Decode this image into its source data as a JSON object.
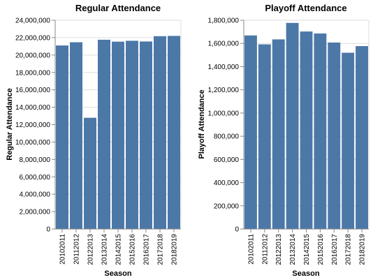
{
  "colors": {
    "bar": "#4c78a8"
  },
  "chart_data": [
    {
      "type": "bar",
      "title": "Regular Attendance",
      "xlabel": "Season",
      "ylabel": "Regular Attendance",
      "categories": [
        "20102011",
        "20112012",
        "20122013",
        "20132014",
        "20142015",
        "20152016",
        "20162017",
        "20172018",
        "20182019"
      ],
      "values": [
        21100000,
        21470000,
        12790000,
        21760000,
        21540000,
        21640000,
        21560000,
        22170000,
        22200000
      ],
      "ylim": [
        0,
        24000000
      ],
      "yticks": [
        0,
        2000000,
        4000000,
        6000000,
        8000000,
        10000000,
        12000000,
        14000000,
        16000000,
        18000000,
        20000000,
        22000000,
        24000000
      ],
      "ytick_labels": [
        "0",
        "2,000,000",
        "4,000,000",
        "6,000,000",
        "8,000,000",
        "10,000,000",
        "12,000,000",
        "14,000,000",
        "16,000,000",
        "18,000,000",
        "20,000,000",
        "22,000,000",
        "24,000,000"
      ],
      "grid": true
    },
    {
      "type": "bar",
      "title": "Playoff Attendance",
      "xlabel": "Season",
      "ylabel": "Playoff Attendance",
      "categories": [
        "20102011",
        "20112012",
        "20122013",
        "20132014",
        "20142015",
        "20152016",
        "20162017",
        "20172018",
        "20182019"
      ],
      "values": [
        1669000,
        1592000,
        1635000,
        1777000,
        1703000,
        1686000,
        1608000,
        1520000,
        1577000
      ],
      "ylim": [
        0,
        1800000
      ],
      "yticks": [
        0,
        200000,
        400000,
        600000,
        800000,
        1000000,
        1200000,
        1400000,
        1600000,
        1800000
      ],
      "ytick_labels": [
        "0",
        "200,000",
        "400,000",
        "600,000",
        "800,000",
        "1,000,000",
        "1,200,000",
        "1,400,000",
        "1,600,000",
        "1,800,000"
      ],
      "grid": true
    }
  ]
}
